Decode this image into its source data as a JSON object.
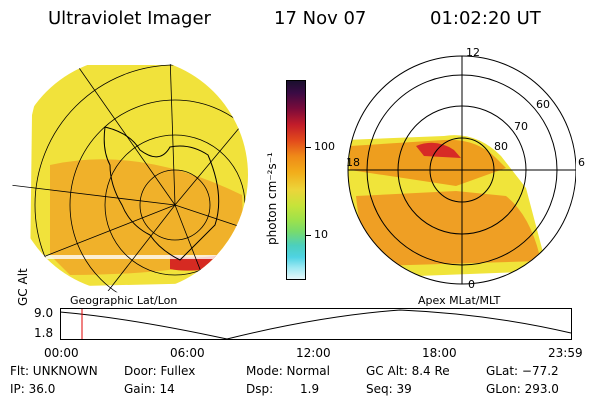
{
  "header": {
    "title": "Ultraviolet Imager",
    "date": "17 Nov 07",
    "time": "01:02:20 UT"
  },
  "colors": {
    "grid": "#000000",
    "aurora_outer": "#f2e33a",
    "aurora_core": "#f2a11c",
    "aurora_hot": "#d81f26",
    "cursor": "#e00000"
  },
  "colorbar": {
    "unit": "photon cm⁻²s⁻¹",
    "scale": "log",
    "tick_labels": [
      "100",
      "10"
    ]
  },
  "geo_map": {
    "caption": "Geographic Lat/Lon"
  },
  "polar_map": {
    "caption": "Apex MLat/MLT",
    "mlt_labels": [
      "12",
      "18",
      "6",
      "0"
    ],
    "mlat_labels": [
      "60",
      "70",
      "80"
    ]
  },
  "altitude_plot": {
    "axis_label": "GC Alt",
    "y_ticks": [
      "9.0",
      "1.8"
    ],
    "time_ticks": [
      "00:00",
      "06:00",
      "12:00",
      "18:00",
      "23:59"
    ],
    "cursor_time": "01:02:20"
  },
  "info": {
    "filter": "Flt: UNKNOWN",
    "door": "Door: Fullex",
    "mode": "Mode: Normal",
    "gc_alt": "GC Alt: 8.4 Re",
    "glat": "GLat: −77.2",
    "ip": "IP: 36.0",
    "gain": "Gain: 14",
    "dsp_label": "Dsp:",
    "dsp_value": "1.9",
    "seq": "Seq: 39",
    "glon": "GLon: 293.0"
  }
}
